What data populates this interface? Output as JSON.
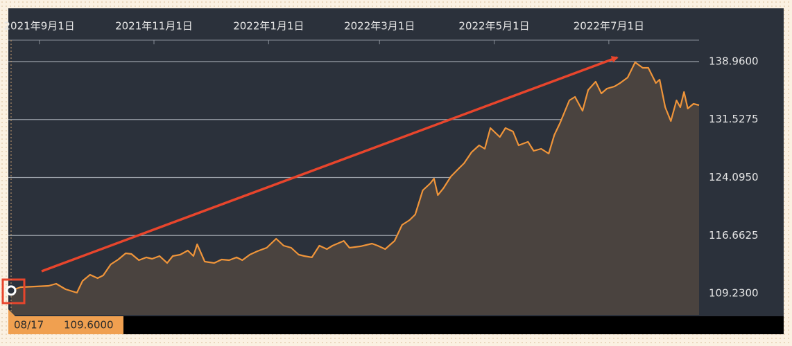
{
  "chart_data": {
    "type": "area",
    "x": [
      "2021-08-17",
      "2021-08-22",
      "2021-08-30",
      "2021-09-06",
      "2021-09-10",
      "2021-09-15",
      "2021-09-21",
      "2021-09-24",
      "2021-09-28",
      "2021-10-02",
      "2021-10-05",
      "2021-10-09",
      "2021-10-13",
      "2021-10-17",
      "2021-10-20",
      "2021-10-24",
      "2021-10-28",
      "2021-10-31",
      "2021-11-04",
      "2021-11-08",
      "2021-11-11",
      "2021-11-15",
      "2021-11-19",
      "2021-11-22",
      "2021-11-24",
      "2021-11-28",
      "2021-12-03",
      "2021-12-07",
      "2021-12-11",
      "2021-12-15",
      "2021-12-18",
      "2021-12-22",
      "2021-12-26",
      "2021-12-31",
      "2022-01-05",
      "2022-01-09",
      "2022-01-13",
      "2022-01-17",
      "2022-01-20",
      "2022-01-24",
      "2022-01-28",
      "2022-02-01",
      "2022-02-04",
      "2022-02-10",
      "2022-02-13",
      "2022-02-19",
      "2022-02-25",
      "2022-02-28",
      "2022-03-04",
      "2022-03-09",
      "2022-03-13",
      "2022-03-17",
      "2022-03-20",
      "2022-03-24",
      "2022-03-28",
      "2022-03-30",
      "2022-04-01",
      "2022-04-04",
      "2022-04-08",
      "2022-04-12",
      "2022-04-15",
      "2022-04-19",
      "2022-04-23",
      "2022-04-26",
      "2022-04-29",
      "2022-05-04",
      "2022-05-07",
      "2022-05-11",
      "2022-05-14",
      "2022-05-19",
      "2022-05-22",
      "2022-05-26",
      "2022-05-30",
      "2022-06-02",
      "2022-06-05",
      "2022-06-10",
      "2022-06-13",
      "2022-06-17",
      "2022-06-20",
      "2022-06-24",
      "2022-06-27",
      "2022-06-30",
      "2022-07-04",
      "2022-07-07",
      "2022-07-11",
      "2022-07-15",
      "2022-07-19",
      "2022-07-22",
      "2022-07-26",
      "2022-07-28",
      "2022-07-31",
      "2022-08-03",
      "2022-08-06",
      "2022-08-08",
      "2022-08-10",
      "2022-08-12",
      "2022-08-15",
      "2022-08-18"
    ],
    "series": [
      {
        "color": "#f0953a",
        "fill": "#4a433f",
        "values": [
          109.6,
          110.03,
          110.12,
          110.21,
          110.47,
          109.76,
          109.32,
          110.83,
          111.63,
          111.18,
          111.54,
          112.96,
          113.58,
          114.38,
          114.29,
          113.49,
          113.85,
          113.67,
          114.02,
          113.13,
          114.02,
          114.2,
          114.73,
          114.02,
          115.53,
          113.31,
          113.13,
          113.58,
          113.49,
          113.85,
          113.49,
          114.2,
          114.64,
          115.09,
          116.24,
          115.35,
          115.09,
          114.2,
          114.02,
          113.85,
          115.35,
          114.91,
          115.35,
          115.97,
          115.09,
          115.27,
          115.62,
          115.35,
          114.91,
          115.97,
          118.02,
          118.64,
          119.35,
          122.45,
          123.34,
          123.96,
          121.83,
          122.72,
          124.23,
          125.21,
          125.92,
          127.34,
          128.22,
          127.78,
          130.44,
          129.29,
          130.44,
          130.0,
          128.22,
          128.67,
          127.51,
          127.78,
          127.16,
          129.55,
          131.06,
          133.99,
          134.43,
          132.65,
          135.32,
          136.39,
          134.88,
          135.5,
          135.77,
          136.21,
          136.92,
          138.87,
          138.16,
          138.16,
          136.21,
          136.65,
          133.1,
          131.33,
          133.99,
          133.1,
          135.06,
          132.93,
          133.55,
          133.37
        ]
      }
    ],
    "xlim": [
      "2021-08-17",
      "2022-08-18"
    ],
    "xticks": [
      {
        "value": "2021-09-01",
        "label": "2021年9月1日"
      },
      {
        "value": "2021-11-01",
        "label": "2021年11月1日"
      },
      {
        "value": "2022-01-01",
        "label": "2022年1月1日"
      },
      {
        "value": "2022-03-01",
        "label": "2022年3月1日"
      },
      {
        "value": "2022-05-01",
        "label": "2022年5月1日"
      },
      {
        "value": "2022-07-01",
        "label": "2022年7月1日"
      }
    ],
    "ylim": [
      106.48,
      141.71
    ],
    "yticks": [
      {
        "value": 109.23,
        "label": "109.2300"
      },
      {
        "value": 116.6625,
        "label": "116.6625"
      },
      {
        "value": 124.095,
        "label": "124.0950"
      },
      {
        "value": 131.5275,
        "label": "131.5275"
      },
      {
        "value": 138.96,
        "label": "138.9600"
      }
    ],
    "grid": true,
    "crosshair": {
      "date_label": "08/17",
      "value": 109.6,
      "value_label": "109.6000"
    }
  }
}
